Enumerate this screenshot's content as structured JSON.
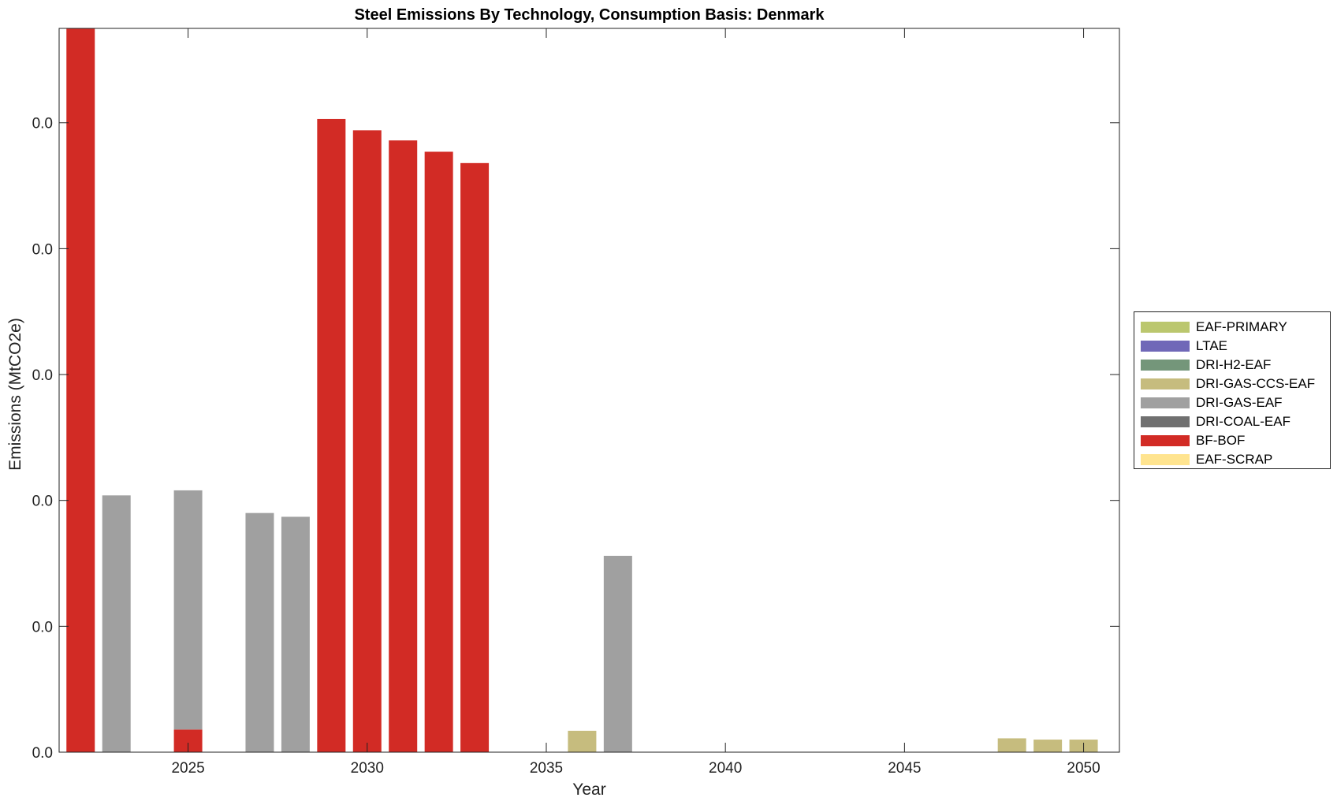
{
  "chart_data": {
    "type": "bar",
    "stacked": true,
    "title": "Steel Emissions By Technology, Consumption Basis: Denmark",
    "xlabel": "Year",
    "ylabel": "Emissions (MtCO2e)",
    "xlim": [
      2021.4,
      2051
    ],
    "ylim": [
      0,
      0.0575
    ],
    "x_ticks": [
      2025,
      2030,
      2035,
      2040,
      2045,
      2050
    ],
    "x_tick_labels": [
      "2025",
      "2030",
      "2035",
      "2040",
      "2045",
      "2050"
    ],
    "y_ticks": [
      0,
      0.01,
      0.02,
      0.03,
      0.04,
      0.05
    ],
    "y_tick_labels": [
      "0.0",
      "0.0",
      "0.0",
      "0.0",
      "0.0",
      "0.0"
    ],
    "grid": false,
    "legend_position": "right",
    "categories": [
      2022,
      2023,
      2024,
      2025,
      2026,
      2027,
      2028,
      2029,
      2030,
      2031,
      2032,
      2033,
      2034,
      2035,
      2036,
      2037,
      2038,
      2039,
      2040,
      2041,
      2042,
      2043,
      2044,
      2045,
      2046,
      2047,
      2048,
      2049,
      2050
    ],
    "series": [
      {
        "name": "EAF-SCRAP",
        "color": "#FFE48F",
        "values": [
          0,
          0,
          0,
          0,
          0,
          0,
          0,
          0,
          0,
          0,
          0,
          0,
          0,
          0,
          0,
          0,
          0,
          0,
          0,
          0,
          0,
          0,
          0,
          0,
          0,
          0,
          0,
          0,
          0
        ]
      },
      {
        "name": "BF-BOF",
        "color": "#D22B25",
        "values": [
          0.0576,
          0,
          0,
          0.0018,
          0,
          0,
          0,
          0.0503,
          0.0494,
          0.0486,
          0.0477,
          0.0468,
          0,
          0,
          0,
          0,
          0,
          0,
          0,
          0,
          0,
          0,
          0,
          0,
          0,
          0,
          0,
          0,
          0
        ]
      },
      {
        "name": "DRI-COAL-EAF",
        "color": "#707070",
        "values": [
          0,
          0,
          0,
          0,
          0,
          0,
          0,
          0,
          0,
          0,
          0,
          0,
          0,
          0,
          0,
          0,
          0,
          0,
          0,
          0,
          0,
          0,
          0,
          0,
          0,
          0,
          0,
          0,
          0
        ]
      },
      {
        "name": "DRI-GAS-EAF",
        "color": "#A0A0A0",
        "values": [
          0,
          0.0204,
          0,
          0.019,
          0,
          0.019,
          0.0187,
          0,
          0,
          0,
          0,
          0,
          0,
          0,
          0,
          0.0156,
          0,
          0,
          0,
          0,
          0,
          0,
          0,
          0,
          0,
          0,
          0,
          0,
          0
        ]
      },
      {
        "name": "DRI-GAS-CCS-EAF",
        "color": "#C6BC7E",
        "values": [
          0,
          0,
          0,
          0,
          0,
          0,
          0,
          0,
          0,
          0,
          0,
          0,
          0,
          0,
          0.0017,
          0,
          0,
          0,
          0,
          0,
          0,
          0,
          0,
          0,
          0,
          0,
          0.0011,
          0.001,
          0.001
        ]
      },
      {
        "name": "DRI-H2-EAF",
        "color": "#74967A",
        "values": [
          0,
          0,
          0,
          0,
          0,
          0,
          0,
          0,
          0,
          0,
          0,
          0,
          0,
          0,
          0,
          0,
          0,
          0,
          0,
          0,
          0,
          0,
          0,
          0,
          0,
          0,
          0,
          0,
          0
        ]
      },
      {
        "name": "LTAE",
        "color": "#7068B8",
        "values": [
          0,
          0,
          0,
          0,
          0,
          0,
          0,
          0,
          0,
          0,
          0,
          0,
          0,
          0,
          0,
          0,
          0,
          0,
          0,
          0,
          0,
          0,
          0,
          0,
          0,
          0,
          0,
          0,
          0
        ]
      },
      {
        "name": "EAF-PRIMARY",
        "color": "#BBC76E",
        "values": [
          0,
          0,
          0,
          0,
          0,
          0,
          0,
          0,
          0,
          0,
          0,
          0,
          0,
          0,
          0,
          0,
          0,
          0,
          0,
          0,
          0,
          0,
          0,
          0,
          0,
          0,
          0,
          0,
          0
        ]
      }
    ],
    "legend_order": [
      "EAF-PRIMARY",
      "LTAE",
      "DRI-H2-EAF",
      "DRI-GAS-CCS-EAF",
      "DRI-GAS-EAF",
      "DRI-COAL-EAF",
      "BF-BOF",
      "EAF-SCRAP"
    ]
  }
}
